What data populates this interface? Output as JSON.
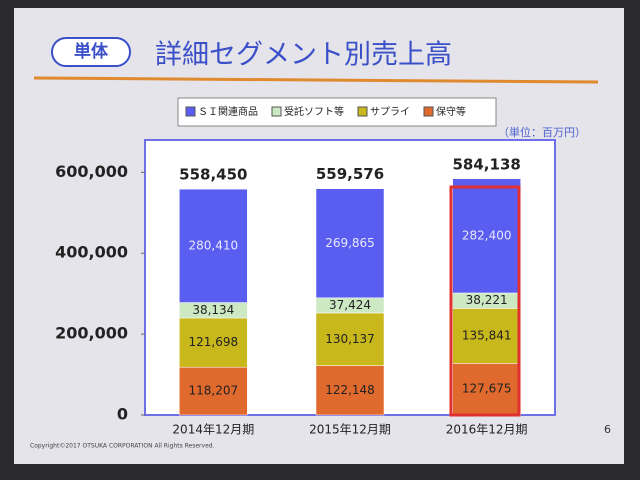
{
  "badge": "単体",
  "chart_data": {
    "type": "stacked-bar",
    "title": "詳細セグメント別売上高",
    "unit_note": "（単位：百万円）",
    "categories": [
      "2014年12月期",
      "2015年12月期",
      "2016年12月期"
    ],
    "series": [
      {
        "name": "ＳＩ関連商品",
        "color": "#5a5ef0",
        "values": [
          280410,
          269865,
          282400
        ],
        "value_labels": [
          "280,410",
          "269,865",
          "282,400"
        ]
      },
      {
        "name": "受託ソフト等",
        "color": "#cde9c4",
        "values": [
          38134,
          37424,
          38221
        ],
        "value_labels": [
          "38,134",
          "37,424",
          "38,221"
        ]
      },
      {
        "name": "サプライ",
        "color": "#c9b81c",
        "values": [
          121698,
          130137,
          135841
        ],
        "value_labels": [
          "121,698",
          "130,137",
          "135,841"
        ]
      },
      {
        "name": "保守等",
        "color": "#e0692e",
        "values": [
          118207,
          122148,
          127675
        ],
        "value_labels": [
          "118,207",
          "122,148",
          "127,675"
        ]
      }
    ],
    "totals": [
      558450,
      559576,
      584138
    ],
    "total_labels": [
      "558,450",
      "559,576",
      "584,138"
    ],
    "ylim": [
      0,
      680000
    ],
    "yticks": [
      0,
      {
        "value": 200000,
        "label": "200,000"
      },
      {
        "value": 400000,
        "label": "400,000"
      },
      {
        "value": 600000,
        "label": "600,000"
      }
    ]
  },
  "footer": {
    "copyright": "Copyright©2017 OTSUKA CORPORATION All Rights Reserved.",
    "page": "6"
  }
}
